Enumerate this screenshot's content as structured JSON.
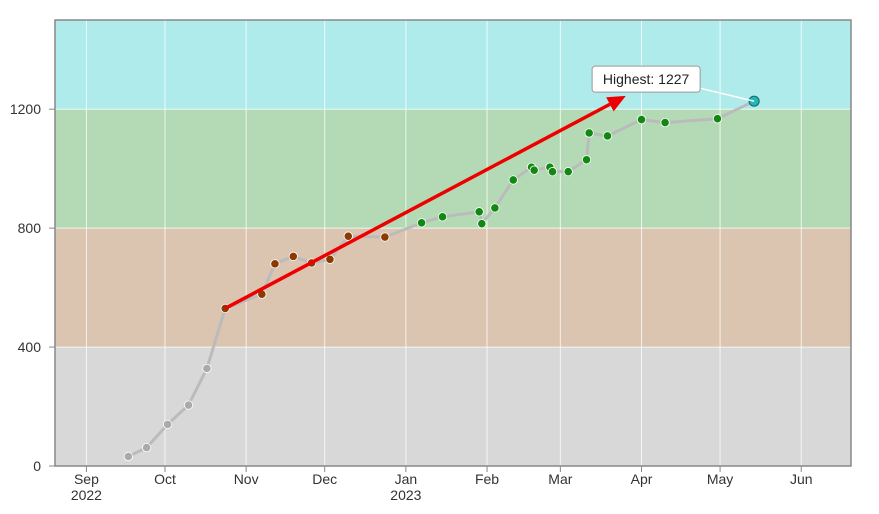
{
  "chart_data": {
    "type": "line",
    "title": "",
    "xlabel": "",
    "ylabel": "",
    "ylim": [
      0,
      1500
    ],
    "xlim": [
      "2022-08-20",
      "2023-06-20"
    ],
    "y_ticks": [
      0,
      400,
      800,
      1200
    ],
    "x_ticks": [
      {
        "date": "2022-09-01",
        "label": "Sep",
        "sublabel": "2022"
      },
      {
        "date": "2022-10-01",
        "label": "Oct",
        "sublabel": ""
      },
      {
        "date": "2022-11-01",
        "label": "Nov",
        "sublabel": ""
      },
      {
        "date": "2022-12-01",
        "label": "Dec",
        "sublabel": ""
      },
      {
        "date": "2023-01-01",
        "label": "Jan",
        "sublabel": "2023"
      },
      {
        "date": "2023-02-01",
        "label": "Feb",
        "sublabel": ""
      },
      {
        "date": "2023-03-01",
        "label": "Mar",
        "sublabel": ""
      },
      {
        "date": "2023-04-01",
        "label": "Apr",
        "sublabel": ""
      },
      {
        "date": "2023-05-01",
        "label": "May",
        "sublabel": ""
      },
      {
        "date": "2023-06-01",
        "label": "Jun",
        "sublabel": ""
      }
    ],
    "grid": true,
    "bands": [
      {
        "from": 0,
        "to": 400,
        "color": "#d8d8d8"
      },
      {
        "from": 400,
        "to": 800,
        "color": "#dbc5b0"
      },
      {
        "from": 800,
        "to": 1200,
        "color": "#b3dab5"
      },
      {
        "from": 1200,
        "to": 1500,
        "color": "#b0ebeb"
      }
    ],
    "line_color": "#bbbbbb",
    "series": [
      {
        "points": [
          {
            "x": "2022-09-17",
            "y": 32,
            "color": "#aaaaaa"
          },
          {
            "x": "2022-09-24",
            "y": 62,
            "color": "#aaaaaa"
          },
          {
            "x": "2022-10-02",
            "y": 140,
            "color": "#aaaaaa"
          },
          {
            "x": "2022-10-10",
            "y": 205,
            "color": "#aaaaaa"
          },
          {
            "x": "2022-10-17",
            "y": 328,
            "color": "#aaaaaa"
          },
          {
            "x": "2022-10-24",
            "y": 530,
            "color": "#8b3a00"
          },
          {
            "x": "2022-11-07",
            "y": 578,
            "color": "#8b3a00"
          },
          {
            "x": "2022-11-12",
            "y": 680,
            "color": "#8b3a00"
          },
          {
            "x": "2022-11-19",
            "y": 705,
            "color": "#8b3a00"
          },
          {
            "x": "2022-11-26",
            "y": 683,
            "color": "#8b3a00"
          },
          {
            "x": "2022-12-03",
            "y": 695,
            "color": "#8b3a00"
          },
          {
            "x": "2022-12-10",
            "y": 773,
            "color": "#8b3a00"
          },
          {
            "x": "2022-12-24",
            "y": 770,
            "color": "#8b3a00"
          },
          {
            "x": "2023-01-07",
            "y": 818,
            "color": "#118811"
          },
          {
            "x": "2023-01-15",
            "y": 838,
            "color": "#118811"
          },
          {
            "x": "2023-01-29",
            "y": 855,
            "color": "#118811"
          },
          {
            "x": "2023-01-30",
            "y": 815,
            "color": "#118811"
          },
          {
            "x": "2023-02-04",
            "y": 868,
            "color": "#118811"
          },
          {
            "x": "2023-02-11",
            "y": 962,
            "color": "#118811"
          },
          {
            "x": "2023-02-18",
            "y": 1005,
            "color": "#118811"
          },
          {
            "x": "2023-02-19",
            "y": 995,
            "color": "#118811"
          },
          {
            "x": "2023-02-25",
            "y": 1005,
            "color": "#118811"
          },
          {
            "x": "2023-02-26",
            "y": 990,
            "color": "#118811"
          },
          {
            "x": "2023-03-04",
            "y": 990,
            "color": "#118811"
          },
          {
            "x": "2023-03-11",
            "y": 1030,
            "color": "#118811"
          },
          {
            "x": "2023-03-12",
            "y": 1120,
            "color": "#118811"
          },
          {
            "x": "2023-03-19",
            "y": 1110,
            "color": "#118811"
          },
          {
            "x": "2023-04-01",
            "y": 1165,
            "color": "#118811"
          },
          {
            "x": "2023-04-10",
            "y": 1155,
            "color": "#118811"
          },
          {
            "x": "2023-04-30",
            "y": 1168,
            "color": "#118811"
          },
          {
            "x": "2023-05-14",
            "y": 1227,
            "color": "#22b8b8"
          }
        ]
      }
    ],
    "trend_arrow": {
      "from": {
        "x": "2022-10-24",
        "y": 530
      },
      "to": {
        "x": "2023-03-26",
        "y": 1245
      },
      "color": "#ee0000"
    },
    "annotations": [
      {
        "text": "Highest: 1227",
        "x": "2023-05-14",
        "y": 1227
      }
    ]
  }
}
